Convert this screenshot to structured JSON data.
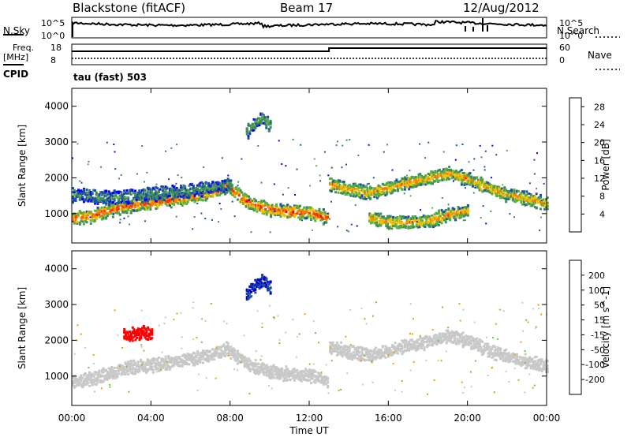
{
  "header": {
    "site": "Blackstone (fitACF)",
    "beam": "Beam 17",
    "date": "12/Aug/2012"
  },
  "top_panels": {
    "nsky_label": "N.Sky",
    "nsky_ticks": [
      "10^5",
      "10^0"
    ],
    "nsearch_label": "N.Search",
    "nsearch_ticks": [
      "10^5",
      "10^0"
    ],
    "freq_label": "Freq.",
    "freq_unit": "[MHz]",
    "freq_ticks": [
      "18",
      "8"
    ],
    "nave_label": "Nave",
    "nave_ticks": [
      "60",
      "0"
    ],
    "cpid_label": "CPID",
    "cpid_value": "tau (fast) 503"
  },
  "colors": {
    "power_scale": [
      "#0000ff",
      "#1f4fa0",
      "#3f8c5a",
      "#58b040",
      "#f0c000",
      "#f08000",
      "#ff3000",
      "#ff0000"
    ],
    "velocity_scale": [
      "#0000cc",
      "#1f4fa0",
      "#3f8c5a",
      "#66cc33",
      "#c8c8c8",
      "#c8c8c8",
      "#f0a000",
      "#ff6600",
      "#ff0000"
    ],
    "ground_scatter": "#c8c8c8"
  },
  "chart_data": [
    {
      "type": "heatmap",
      "title": "",
      "xlabel": "",
      "ylabel": "Slant Range [km]",
      "xlim": [
        "00:00",
        "24:00"
      ],
      "ylim": [
        180,
        4500
      ],
      "x_ticks": [
        "00:00",
        "04:00",
        "08:00",
        "12:00",
        "16:00",
        "20:00",
        "00:00"
      ],
      "y_ticks": [
        1000,
        2000,
        3000,
        4000
      ],
      "colorbar": {
        "label": "Power [dB]",
        "ticks": [
          4,
          8,
          12,
          16,
          20,
          24,
          28
        ],
        "range": [
          0,
          30
        ]
      },
      "bands": [
        {
          "hours": [
            0,
            1,
            2,
            3,
            4,
            5,
            6,
            7,
            7.8,
            9,
            10,
            11,
            12,
            12.9
          ],
          "ranges_km": [
            900,
            950,
            1150,
            1260,
            1330,
            1410,
            1500,
            1620,
            1800,
            1300,
            1150,
            1080,
            1050,
            900
          ],
          "power_db": 24
        },
        {
          "hours": [
            0,
            1,
            2,
            3,
            4,
            5,
            6,
            7,
            8
          ],
          "ranges_km": [
            1550,
            1500,
            1480,
            1500,
            1560,
            1620,
            1680,
            1750,
            1850
          ],
          "power_db": 10
        },
        {
          "hours": [
            13,
            14,
            15,
            16,
            17,
            18,
            19,
            20,
            21,
            22,
            23,
            24
          ],
          "ranges_km": [
            1850,
            1700,
            1600,
            1750,
            1900,
            2000,
            2150,
            2000,
            1750,
            1550,
            1450,
            1300
          ],
          "power_db": 20
        },
        {
          "hours": [
            8.8,
            9.2,
            9.6,
            10.0
          ],
          "ranges_km": [
            3300,
            3550,
            3700,
            3500
          ],
          "power_db": 12
        },
        {
          "hours": [
            15,
            16,
            17,
            18,
            19,
            20
          ],
          "ranges_km": [
            900,
            800,
            780,
            820,
            1000,
            1100
          ],
          "power_db": 20
        }
      ]
    },
    {
      "type": "heatmap",
      "title": "",
      "xlabel": "Time UT",
      "ylabel": "Slant Range [km]",
      "xlim": [
        "00:00",
        "24:00"
      ],
      "ylim": [
        180,
        4500
      ],
      "x_ticks": [
        "00:00",
        "04:00",
        "08:00",
        "12:00",
        "16:00",
        "20:00",
        "00:00"
      ],
      "y_ticks": [
        1000,
        2000,
        3000,
        4000
      ],
      "colorbar": {
        "label": "Velocity [m s^-1]",
        "ticks": [
          200,
          100,
          50,
          15,
          -15,
          -50,
          -100,
          -200
        ],
        "range": [
          -250,
          250
        ]
      },
      "bands": [
        {
          "hours": [
            0,
            1,
            2,
            3,
            4,
            5,
            6,
            7,
            7.8,
            9,
            10,
            11,
            12,
            12.9
          ],
          "ranges_km": [
            900,
            950,
            1150,
            1260,
            1330,
            1410,
            1500,
            1620,
            1800,
            1300,
            1150,
            1080,
            1050,
            900
          ],
          "velocity": 0
        },
        {
          "hours": [
            13,
            14,
            15,
            16,
            17,
            18,
            19,
            20,
            21,
            22,
            23,
            24
          ],
          "ranges_km": [
            1850,
            1700,
            1600,
            1750,
            1900,
            2000,
            2150,
            2000,
            1750,
            1550,
            1450,
            1300
          ],
          "velocity": 0
        },
        {
          "hours": [
            2.6,
            3.0,
            3.5,
            4.0
          ],
          "ranges_km": [
            2200,
            2200,
            2250,
            2200
          ],
          "velocity": -200
        },
        {
          "hours": [
            8.8,
            9.2,
            9.6,
            10.0
          ],
          "ranges_km": [
            3300,
            3550,
            3700,
            3500
          ],
          "velocity": 150
        }
      ]
    }
  ]
}
